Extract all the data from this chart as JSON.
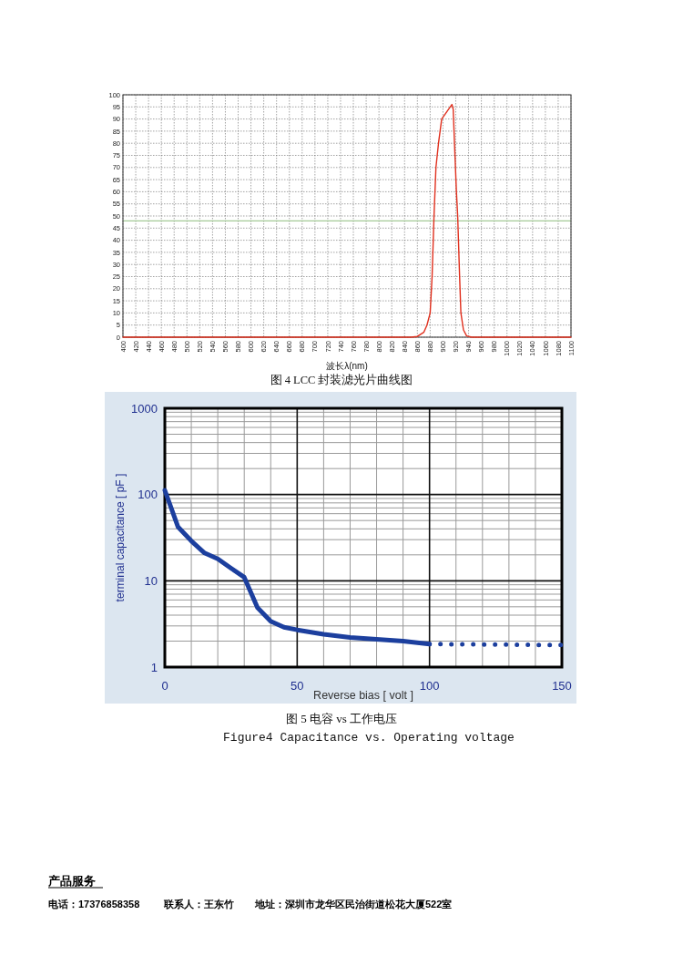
{
  "chart_data": [
    {
      "type": "line",
      "title": "图 4 LCC 封装滤光片曲线图",
      "xlabel": "波长λ(nm)",
      "series": [
        {
          "color": "#e0301e",
          "x": [
            400,
            850,
            860,
            870,
            875,
            880,
            883,
            886,
            889,
            893,
            898,
            906,
            914,
            916,
            918,
            921,
            923,
            926,
            928,
            932,
            937,
            945,
            1100
          ],
          "values": [
            0,
            0,
            0.3,
            2,
            5,
            10,
            25,
            50,
            70,
            80,
            90,
            93,
            96,
            94,
            80,
            60,
            50,
            25,
            10,
            3,
            0.5,
            0,
            0
          ]
        }
      ],
      "xlim": [
        400,
        1100
      ],
      "xticks": [
        400,
        420,
        440,
        460,
        480,
        500,
        520,
        540,
        560,
        580,
        600,
        620,
        640,
        660,
        680,
        700,
        720,
        740,
        760,
        780,
        800,
        820,
        840,
        860,
        880,
        900,
        920,
        940,
        960,
        980,
        1000,
        1020,
        1040,
        1060,
        1080,
        1100
      ],
      "ylim": [
        0,
        100
      ],
      "yticks": [
        0,
        5,
        10,
        15,
        20,
        25,
        30,
        35,
        40,
        45,
        50,
        55,
        60,
        65,
        70,
        75,
        80,
        85,
        90,
        95,
        100
      ],
      "grid": true,
      "ref_lines": [
        {
          "axis": "y",
          "value": 48,
          "color": "#8fbf7f"
        }
      ]
    },
    {
      "type": "line",
      "title": "图 5 电容 vs 工作电压",
      "subtitle": "Figure4  Capacitance vs. Operating voltage",
      "xlabel": "Reverse  bias [ volt ]",
      "ylabel": "terminal capacitance [ pF ]",
      "log": "y",
      "series": [
        {
          "color": "#1c3f9e",
          "line_style": "solid",
          "x": [
            0,
            5,
            10,
            15,
            20,
            25,
            30,
            35,
            40,
            45,
            50,
            60,
            70,
            80,
            90,
            100
          ],
          "values": [
            112,
            42,
            29,
            21,
            18,
            14,
            11,
            4.9,
            3.4,
            2.9,
            2.7,
            2.4,
            2.2,
            2.1,
            2.0,
            1.85
          ]
        },
        {
          "color": "#1c3f9e",
          "line_style": "dotted",
          "x": [
            100,
            150
          ],
          "values": [
            1.85,
            1.8
          ]
        }
      ],
      "xlim": [
        0,
        150
      ],
      "xticks": [
        0,
        50,
        100,
        150
      ],
      "ylim": [
        1,
        1000
      ],
      "yticks": [
        1,
        10,
        100,
        1000
      ],
      "grid": true,
      "annotations": [
        "产品服务",
        "电话：17376858358",
        "联系人：王东竹",
        "地址：深圳市龙华区民治街道松花大厦522室"
      ]
    }
  ]
}
